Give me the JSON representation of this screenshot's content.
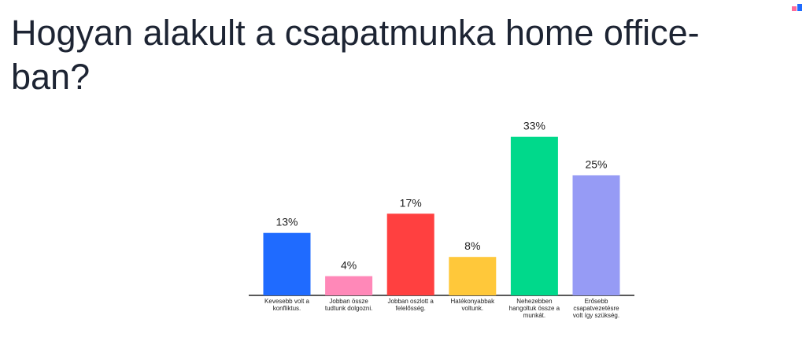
{
  "chart_data": {
    "type": "bar",
    "title": "Hogyan alakult a csapatmunka home office-ban?",
    "categories": [
      "Kevesebb volt a konfliktus.",
      "Jobban össze tudtunk dolgozni.",
      "Jobban oszlott a felelősség.",
      "Hatékonyabbak voltunk.",
      "Nehezebben hangoltuk össze a munkát.",
      "Erősebb csapatvezetésre volt így szükség."
    ],
    "values": [
      13,
      4,
      17,
      8,
      33,
      25
    ],
    "value_labels": [
      "13%",
      "4%",
      "17%",
      "8%",
      "33%",
      "25%"
    ],
    "colors": [
      "#1f6bff",
      "#ff88b8",
      "#ff4040",
      "#ffc83a",
      "#00d98b",
      "#969bf5"
    ]
  }
}
